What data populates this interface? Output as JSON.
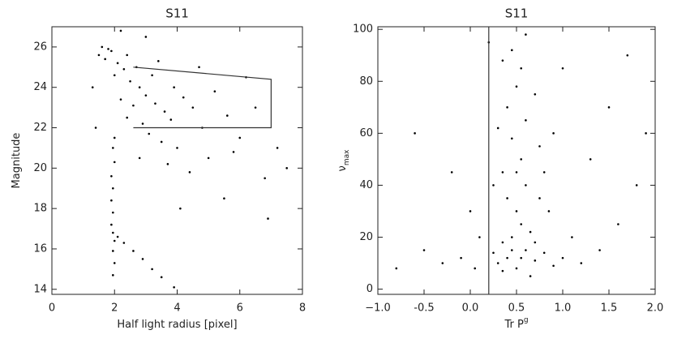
{
  "chart_data": [
    {
      "type": "scatter",
      "title": "S11",
      "xlabel": "Half light radius [pixel]",
      "ylabel": "Magnitude",
      "color": "#000000",
      "xlim": [
        0,
        8
      ],
      "ylim": [
        13.75,
        27
      ],
      "xticks": [
        0,
        2,
        4,
        6,
        8
      ],
      "yticks": [
        14,
        16,
        18,
        20,
        22,
        24,
        26
      ],
      "x": [
        1.5,
        1.7,
        1.9,
        2.1,
        2.3,
        2.0,
        2.5,
        2.8,
        3.0,
        2.2,
        2.6,
        3.3,
        3.6,
        2.4,
        2.9,
        3.8,
        4.2,
        3.1,
        3.5,
        4.0,
        2.7,
        3.2,
        1.8,
        1.6,
        2.4,
        3.9,
        4.5,
        4.8,
        5.2,
        5.6,
        6.0,
        5.0,
        4.4,
        6.5,
        7.2,
        6.8,
        5.5,
        7.5,
        3.0,
        2.2,
        1.3,
        1.4,
        6.2,
        4.7,
        3.4,
        2.8,
        3.7,
        5.8,
        4.1,
        6.9,
        2.0,
        1.95,
        2.0,
        1.9,
        1.95,
        1.9,
        1.95,
        1.9,
        1.95,
        2.0,
        1.95,
        2.0,
        1.95,
        2.3,
        2.6,
        2.9,
        3.2,
        3.5,
        3.9,
        2.1
      ],
      "y": [
        25.6,
        25.4,
        25.8,
        25.2,
        24.9,
        24.6,
        24.3,
        24.0,
        23.6,
        23.4,
        23.1,
        23.2,
        22.8,
        22.5,
        22.2,
        22.4,
        23.5,
        21.7,
        21.3,
        21.0,
        25.0,
        24.6,
        25.9,
        26.0,
        25.6,
        24.0,
        23.0,
        22.0,
        23.8,
        22.6,
        21.5,
        20.5,
        19.8,
        23.0,
        21.0,
        19.5,
        18.5,
        20.0,
        26.5,
        26.8,
        24.0,
        22.0,
        24.5,
        25.0,
        25.3,
        20.5,
        20.2,
        20.8,
        18.0,
        17.5,
        21.5,
        21.0,
        20.3,
        19.6,
        19.0,
        18.4,
        17.8,
        17.2,
        16.8,
        16.4,
        15.9,
        15.3,
        14.7,
        16.3,
        15.9,
        15.5,
        15.0,
        14.6,
        14.1,
        16.6
      ],
      "outline": {
        "x": [
          2.6,
          7,
          7,
          2.6
        ],
        "y": [
          25,
          24.4,
          22,
          22
        ]
      }
    },
    {
      "type": "scatter",
      "title": "S11",
      "xlabel": "Tr P",
      "xlabel_superscript": "g",
      "ylabel": "ν",
      "ylabel_subscript": "max",
      "color": "#000000",
      "xlim": [
        -1.0,
        2.0
      ],
      "ylim": [
        -2,
        101
      ],
      "xticks": [
        {
          "value": -1,
          "label": "−1.0"
        },
        -0.5,
        {
          "value": 0,
          "label": "0.0"
        },
        0.5,
        {
          "value": 1,
          "label": "1.0"
        },
        1.5,
        {
          "value": 2,
          "label": "2.0"
        }
      ],
      "yticks": [
        0,
        20,
        40,
        60,
        80,
        100
      ],
      "x": [
        0.3,
        0.4,
        0.5,
        0.6,
        0.7,
        0.45,
        0.35,
        0.55,
        0.65,
        0.8,
        0.9,
        0.25,
        1.0,
        0.5,
        0.4,
        0.6,
        0.35,
        0.55,
        0.45,
        0.6,
        0.4,
        0.5,
        0.55,
        0.45,
        0.6,
        0.35,
        0.7,
        0.75,
        0.3,
        0.25,
        0.8,
        0.85,
        1.1,
        1.2,
        1.4,
        1.6,
        1.8,
        1.3,
        1.5,
        1.7,
        1.9,
        -0.1,
        -0.3,
        -0.5,
        -0.8,
        0.0,
        -0.2,
        -0.6,
        0.1,
        0.05,
        0.65,
        0.9,
        1.0,
        0.2,
        0.75,
        0.5,
        0.45,
        0.55,
        0.35,
        0.7
      ],
      "y": [
        10,
        12,
        8,
        15,
        11,
        20,
        18,
        25,
        22,
        14,
        9,
        14,
        12,
        30,
        35,
        40,
        45,
        50,
        58,
        65,
        70,
        78,
        85,
        92,
        98,
        88,
        75,
        55,
        62,
        40,
        45,
        30,
        20,
        10,
        15,
        25,
        40,
        50,
        70,
        90,
        60,
        12,
        10,
        15,
        8,
        30,
        45,
        60,
        20,
        8,
        5,
        60,
        85,
        95,
        35,
        45,
        15,
        12,
        7,
        18
      ],
      "cut_x": 0.2
    }
  ]
}
